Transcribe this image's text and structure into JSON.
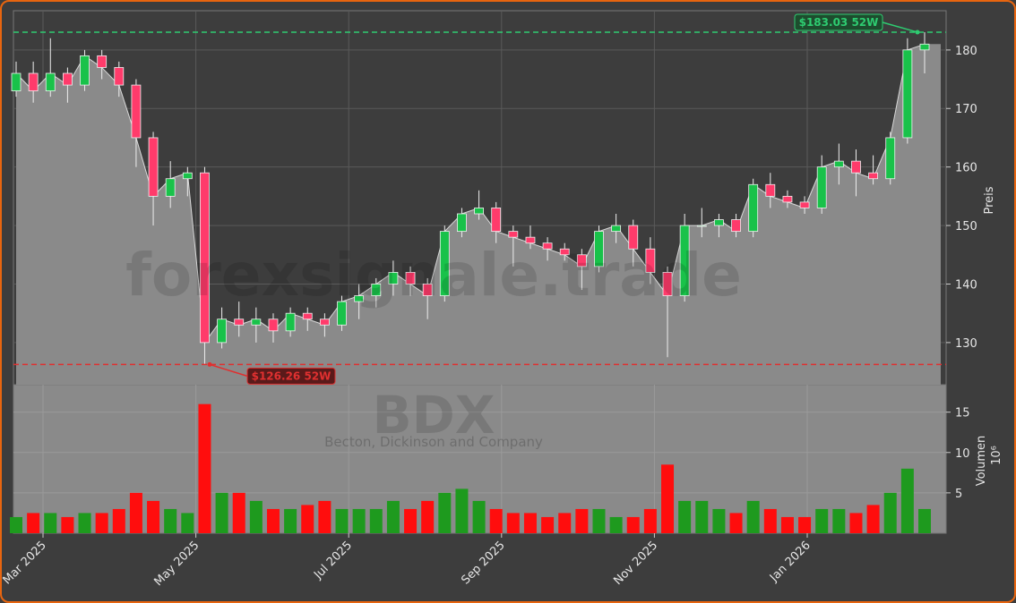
{
  "chart_data": {
    "type": "candlestick",
    "watermark": "forexsignale.trade",
    "ticker": "BDX",
    "company": "Becton, Dickinson and Company",
    "ylabel": "Preis",
    "y2label": "Volumen",
    "y2scale_label": "10⁶",
    "up_color": "#19c24a",
    "down_color": "#ff3b6b",
    "volume_up_color": "#1e9a1e",
    "volume_down_color": "#ff0d0d",
    "grid": true,
    "ylim": [
      122.8,
      186.7
    ],
    "yticks": [
      130,
      140,
      150,
      160,
      170,
      180
    ],
    "y2lim": [
      0,
      18.4
    ],
    "y2ticks": [
      5,
      10,
      15
    ],
    "xticks": [
      {
        "value": "2025-03",
        "label": "Mar 2025"
      },
      {
        "value": "2025-05",
        "label": "May 2025"
      },
      {
        "value": "2025-07",
        "label": "Jul 2025"
      },
      {
        "value": "2025-09",
        "label": "Sep 2025"
      },
      {
        "value": "2025-11",
        "label": "Nov 2025"
      },
      {
        "value": "2026-01",
        "label": "Jan 2026"
      }
    ],
    "annotations": [
      {
        "value": 183.03,
        "label": "$183.03 52W",
        "color": "#2ecc71"
      },
      {
        "value": 126.26,
        "label": "$126.26 52W",
        "color": "#e03030"
      }
    ],
    "open": [
      173,
      176,
      173,
      176,
      174,
      179,
      177,
      174,
      165,
      155,
      158,
      159,
      130,
      134,
      133,
      134,
      132,
      135,
      134,
      133,
      137,
      138,
      140,
      142,
      140,
      138,
      149,
      152,
      153,
      149,
      148,
      147,
      146,
      145,
      143,
      149,
      150,
      146,
      142,
      138,
      150,
      150,
      151,
      149,
      157,
      155,
      154,
      153,
      160,
      161,
      159,
      158,
      165,
      180
    ],
    "high": [
      178,
      178,
      182,
      177,
      180,
      180,
      178,
      175,
      166,
      161,
      160,
      160,
      136,
      137,
      136,
      135,
      136,
      136,
      135,
      138,
      140,
      141,
      144,
      143,
      141,
      150,
      153,
      156,
      154,
      150,
      150,
      148,
      147,
      146,
      150,
      152,
      151,
      148,
      143,
      152,
      153,
      152,
      152,
      158,
      159,
      156,
      155,
      162,
      164,
      163,
      162,
      166,
      182,
      183.03
    ],
    "low": [
      172,
      171,
      172,
      171,
      173,
      175,
      172,
      160,
      150,
      153,
      155,
      126.26,
      129,
      131,
      130,
      130,
      131,
      132,
      131,
      132,
      134,
      136,
      138,
      138,
      134,
      137,
      148,
      151,
      147,
      143,
      146,
      144,
      144,
      139,
      142,
      147,
      143,
      140,
      127.5,
      137,
      148,
      148,
      148,
      148,
      153,
      153,
      152,
      152,
      157,
      155,
      157,
      157,
      164,
      176
    ],
    "close": [
      176,
      173,
      176,
      174,
      179,
      177,
      174,
      165,
      155,
      158,
      159,
      130,
      134,
      133,
      134,
      132,
      135,
      134,
      133,
      137,
      138,
      140,
      142,
      140,
      138,
      149,
      152,
      153,
      149,
      148,
      147,
      146,
      145,
      143,
      149,
      150,
      146,
      142,
      138,
      150,
      150,
      151,
      149,
      157,
      155,
      154,
      153,
      160,
      161,
      159,
      158,
      165,
      180,
      181
    ],
    "volume": [
      2,
      2.5,
      2.5,
      2,
      2.5,
      2.5,
      3,
      5,
      4,
      3,
      2.5,
      16,
      5,
      5,
      4,
      3,
      3,
      3.5,
      4,
      3,
      3,
      3,
      4,
      3,
      4,
      5,
      5.5,
      4,
      3,
      2.5,
      2.5,
      2,
      2.5,
      3,
      3,
      2,
      2,
      3,
      8.5,
      4,
      4,
      3,
      2.5,
      4,
      3,
      2,
      2,
      3,
      3,
      2.5,
      3.5,
      5,
      8,
      3
    ]
  }
}
